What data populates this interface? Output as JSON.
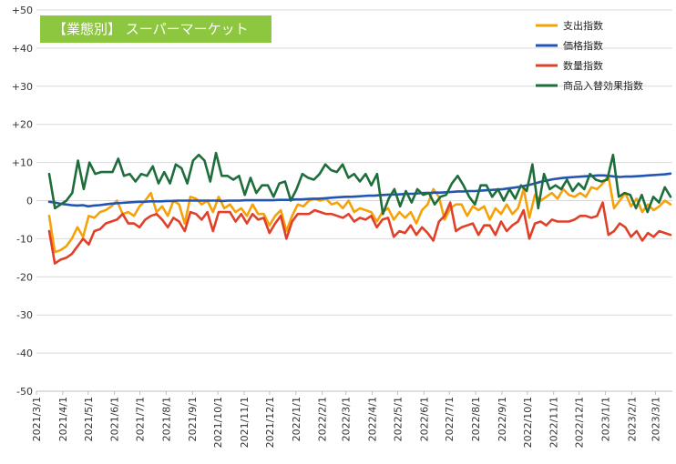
{
  "badge_title": "【業態別】 スーパーマーケット",
  "chart_data": {
    "type": "line",
    "title": "【業態別】 スーパーマーケット",
    "ylim": [
      -50,
      50
    ],
    "ytick_labels": [
      "+50",
      "+40",
      "+30",
      "+20",
      "+10",
      "0",
      "-10",
      "-20",
      "-30",
      "-40",
      "-50"
    ],
    "ytick_values": [
      50,
      40,
      30,
      20,
      10,
      0,
      -10,
      -20,
      -30,
      -40,
      -50
    ],
    "xtick_labels": [
      "2021/3/1",
      "2021/4/1",
      "2021/5/1",
      "2021/6/1",
      "2021/7/1",
      "2021/8/1",
      "2021/9/1",
      "2021/10/1",
      "2021/11/1",
      "2021/12/1",
      "2022/1/1",
      "2022/2/1",
      "2022/3/1",
      "2022/4/1",
      "2022/5/1",
      "2022/6/1",
      "2022/7/1",
      "2022/8/1",
      "2022/9/1",
      "2022/10/1",
      "2022/11/1",
      "2022/12/1",
      "2023/1/1",
      "2023/2/1",
      "2023/3/1"
    ],
    "x_start": "2021/3/1",
    "x_end": "2023/3/21",
    "grid": true,
    "legend_position": "top-right",
    "series": [
      {
        "name": "支出指数",
        "color": "#f5a10a",
        "values": [
          -4,
          -13.5,
          -13,
          -12,
          -10,
          -7,
          -9.5,
          -4,
          -4.5,
          -3,
          -2.5,
          -1.5,
          0,
          -3.5,
          -3,
          -4,
          -1.5,
          0,
          2,
          -3,
          -1.5,
          -4,
          0,
          -1,
          -6,
          1,
          0.5,
          -1,
          0,
          -3,
          1,
          -2,
          -1,
          -3,
          -2,
          -4,
          -1,
          -3.5,
          -3.5,
          -6.5,
          -4,
          -2.5,
          -8,
          -4,
          -1,
          -1.5,
          0,
          0.5,
          0,
          0.5,
          -1,
          -0.5,
          -2,
          0,
          -3,
          -2,
          -2.5,
          -3,
          -5.5,
          -3,
          -2,
          -5,
          -3,
          -4.5,
          -3,
          -6,
          -2.5,
          -1,
          3,
          1,
          -5,
          -2,
          -1,
          -1,
          -4,
          -1.5,
          -2.5,
          -1.5,
          -5,
          -2,
          -3.5,
          -1,
          -3.5,
          -2,
          3,
          -4.5,
          1.5,
          0,
          1,
          2,
          0.5,
          3,
          1.5,
          1,
          2,
          1,
          3.5,
          3,
          4.5,
          6.5,
          -2,
          0,
          2,
          -1.5,
          0.5,
          -3,
          -1,
          -2.5,
          -1.5,
          0,
          -1
        ]
      },
      {
        "name": "価格指数",
        "color": "#2255b3",
        "values": [
          -0.3,
          -0.5,
          -0.8,
          -1,
          -1.2,
          -1.3,
          -1.2,
          -1.5,
          -1.3,
          -1.2,
          -1,
          -0.8,
          -0.7,
          -0.6,
          -0.5,
          -0.4,
          -0.3,
          -0.3,
          -0.2,
          -0.2,
          -0.2,
          -0.1,
          -0.1,
          0,
          0,
          0,
          0,
          0,
          0,
          0,
          0,
          -0.1,
          0,
          0,
          0,
          0.1,
          0.1,
          0.1,
          0.1,
          0.1,
          0.1,
          0.2,
          0.2,
          0.2,
          0.3,
          0.3,
          0.4,
          0.5,
          0.5,
          0.6,
          0.7,
          0.8,
          0.9,
          1,
          1,
          1.1,
          1.2,
          1.3,
          1.3,
          1.4,
          1.5,
          1.6,
          1.6,
          1.7,
          1.8,
          1.8,
          1.9,
          2,
          2,
          2.1,
          2.1,
          2.2,
          2.3,
          2.4,
          2.4,
          2.5,
          2.5,
          2.6,
          2.7,
          2.8,
          2.9,
          3,
          3.2,
          3.4,
          3.6,
          3.9,
          4.2,
          4.6,
          5,
          5.3,
          5.6,
          5.8,
          6,
          6.1,
          6.2,
          6.3,
          6.4,
          6.5,
          6.6,
          6.6,
          6.5,
          6.3,
          6.2,
          6.3,
          6.3,
          6.4,
          6.5,
          6.6,
          6.7,
          6.8,
          6.9,
          7.1
        ]
      },
      {
        "name": "数量指数",
        "color": "#e0402a",
        "values": [
          -8,
          -16.5,
          -15.5,
          -15,
          -14,
          -12,
          -10,
          -11.5,
          -8,
          -7.5,
          -6,
          -5.5,
          -5,
          -3.5,
          -6,
          -6,
          -7,
          -5,
          -4,
          -3.5,
          -5,
          -7,
          -4.5,
          -5.5,
          -8,
          -3,
          -3.5,
          -5,
          -3,
          -8,
          -3,
          -3,
          -3,
          -5.5,
          -3.5,
          -6,
          -3.5,
          -5,
          -4.5,
          -8.5,
          -6,
          -4,
          -10,
          -5.5,
          -3.5,
          -3.5,
          -3.5,
          -2.5,
          -3,
          -3.5,
          -3.5,
          -4,
          -4.5,
          -3.5,
          -5.5,
          -4.5,
          -5,
          -4,
          -7,
          -5,
          -4.5,
          -9.5,
          -8,
          -8.5,
          -6.5,
          -9,
          -7,
          -8.5,
          -10.5,
          -5.5,
          -4,
          -0.5,
          -8,
          -7,
          -6.5,
          -6,
          -9,
          -6.5,
          -6.5,
          -9,
          -5.5,
          -8,
          -6.5,
          -5.5,
          -2.5,
          -10,
          -6,
          -5.5,
          -6.5,
          -5,
          -5.5,
          -5.5,
          -5.5,
          -5,
          -4,
          -4,
          -4.5,
          -4,
          -0.5,
          -9,
          -8,
          -6,
          -7,
          -9.5,
          -8,
          -10.5,
          -8.5,
          -9.5,
          -8,
          -8.5,
          -9
        ]
      },
      {
        "name": "商品入替効果指数",
        "color": "#1e6e3c",
        "values": [
          7,
          -2,
          -1,
          0,
          2,
          10.5,
          3,
          10,
          7,
          7.5,
          7.5,
          7.5,
          11,
          6.5,
          7,
          5,
          7,
          6.5,
          9,
          4.5,
          7.5,
          4.5,
          9.5,
          8.5,
          4.5,
          10.5,
          12,
          10.5,
          5,
          12.5,
          6.5,
          6.5,
          5.5,
          6.5,
          1.5,
          6,
          2,
          4,
          4,
          1,
          4.5,
          5,
          0,
          3,
          7,
          6,
          5.5,
          7,
          9.5,
          8,
          7.5,
          9.5,
          6,
          7,
          5,
          7,
          4,
          7,
          -3.5,
          0.5,
          3,
          -1.5,
          2.5,
          -0.5,
          3,
          1.5,
          2,
          -1,
          1,
          1.5,
          4.5,
          6.5,
          4,
          1,
          -1,
          4,
          4,
          1,
          3,
          0,
          3,
          0.5,
          4,
          2.5,
          9.5,
          -2,
          7,
          3,
          4,
          3,
          5.5,
          2.5,
          4.5,
          3,
          7,
          5.5,
          5,
          5.5,
          12,
          1,
          2,
          1.5,
          -2,
          1.5,
          -3,
          1,
          -0.5,
          3.5,
          1
        ]
      }
    ]
  }
}
